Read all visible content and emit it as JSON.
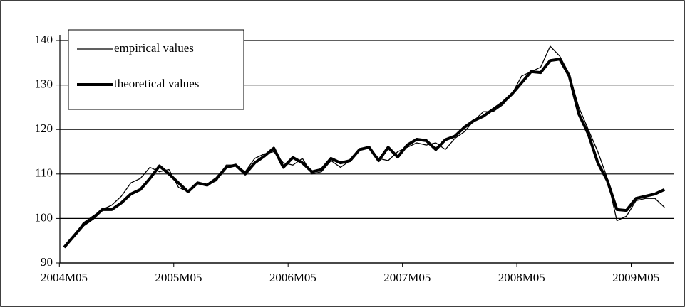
{
  "chart_data": {
    "type": "line",
    "categories": [
      "2004M05",
      null,
      null,
      null,
      null,
      null,
      null,
      null,
      null,
      null,
      null,
      null,
      "2005M05",
      null,
      null,
      null,
      null,
      null,
      null,
      null,
      null,
      null,
      null,
      null,
      "2006M05",
      null,
      null,
      null,
      null,
      null,
      null,
      null,
      null,
      null,
      null,
      null,
      "2007M05",
      null,
      null,
      null,
      null,
      null,
      null,
      null,
      null,
      null,
      null,
      null,
      "2008M05",
      null,
      null,
      null,
      null,
      null,
      null,
      null,
      null,
      null,
      null,
      null,
      "2009M05",
      null,
      null,
      null
    ],
    "series": [
      {
        "name": "empirical values",
        "color": "#000000",
        "width": 1.3,
        "values": [
          93.5,
          96,
          99,
          100.5,
          102,
          103,
          105,
          108,
          109,
          111.5,
          110.5,
          111,
          107,
          106,
          108,
          107.5,
          108.5,
          112,
          112,
          110.5,
          113.5,
          114.5,
          115,
          112.5,
          112,
          113.5,
          110,
          110.5,
          113,
          111.5,
          113,
          115.5,
          116,
          113.5,
          113,
          115,
          116,
          117,
          116.5,
          117,
          115.5,
          118,
          119.5,
          122,
          124,
          124,
          125.5,
          128,
          132,
          133,
          134,
          138.7,
          136.5,
          132.5,
          125,
          120,
          115,
          109,
          99.5,
          100.5,
          104,
          104.5,
          104.5,
          102.5
        ]
      },
      {
        "name": "theoretical values",
        "color": "#000000",
        "width": 4,
        "values": [
          93.5,
          96,
          98.5,
          100,
          102,
          102,
          103.5,
          105.5,
          106.5,
          109,
          111.8,
          110,
          108,
          106,
          108,
          107.5,
          109,
          111.5,
          112,
          110,
          112.5,
          114,
          115.8,
          111.5,
          113.7,
          112.5,
          110.5,
          111,
          113.5,
          112.5,
          113,
          115.5,
          116,
          113,
          116,
          113.8,
          116.5,
          117.8,
          117.5,
          115.5,
          117.7,
          118.5,
          120.5,
          122,
          123,
          124.5,
          126,
          128,
          130.5,
          133,
          132.8,
          135.5,
          135.8,
          132,
          123.5,
          119,
          112.5,
          108.5,
          102,
          101.8,
          104.5,
          105,
          105.5,
          106.5
        ]
      }
    ],
    "ylim": [
      90,
      140
    ],
    "yticks": [
      90,
      100,
      110,
      120,
      130,
      140
    ],
    "grid": true,
    "legend": "top-left"
  }
}
